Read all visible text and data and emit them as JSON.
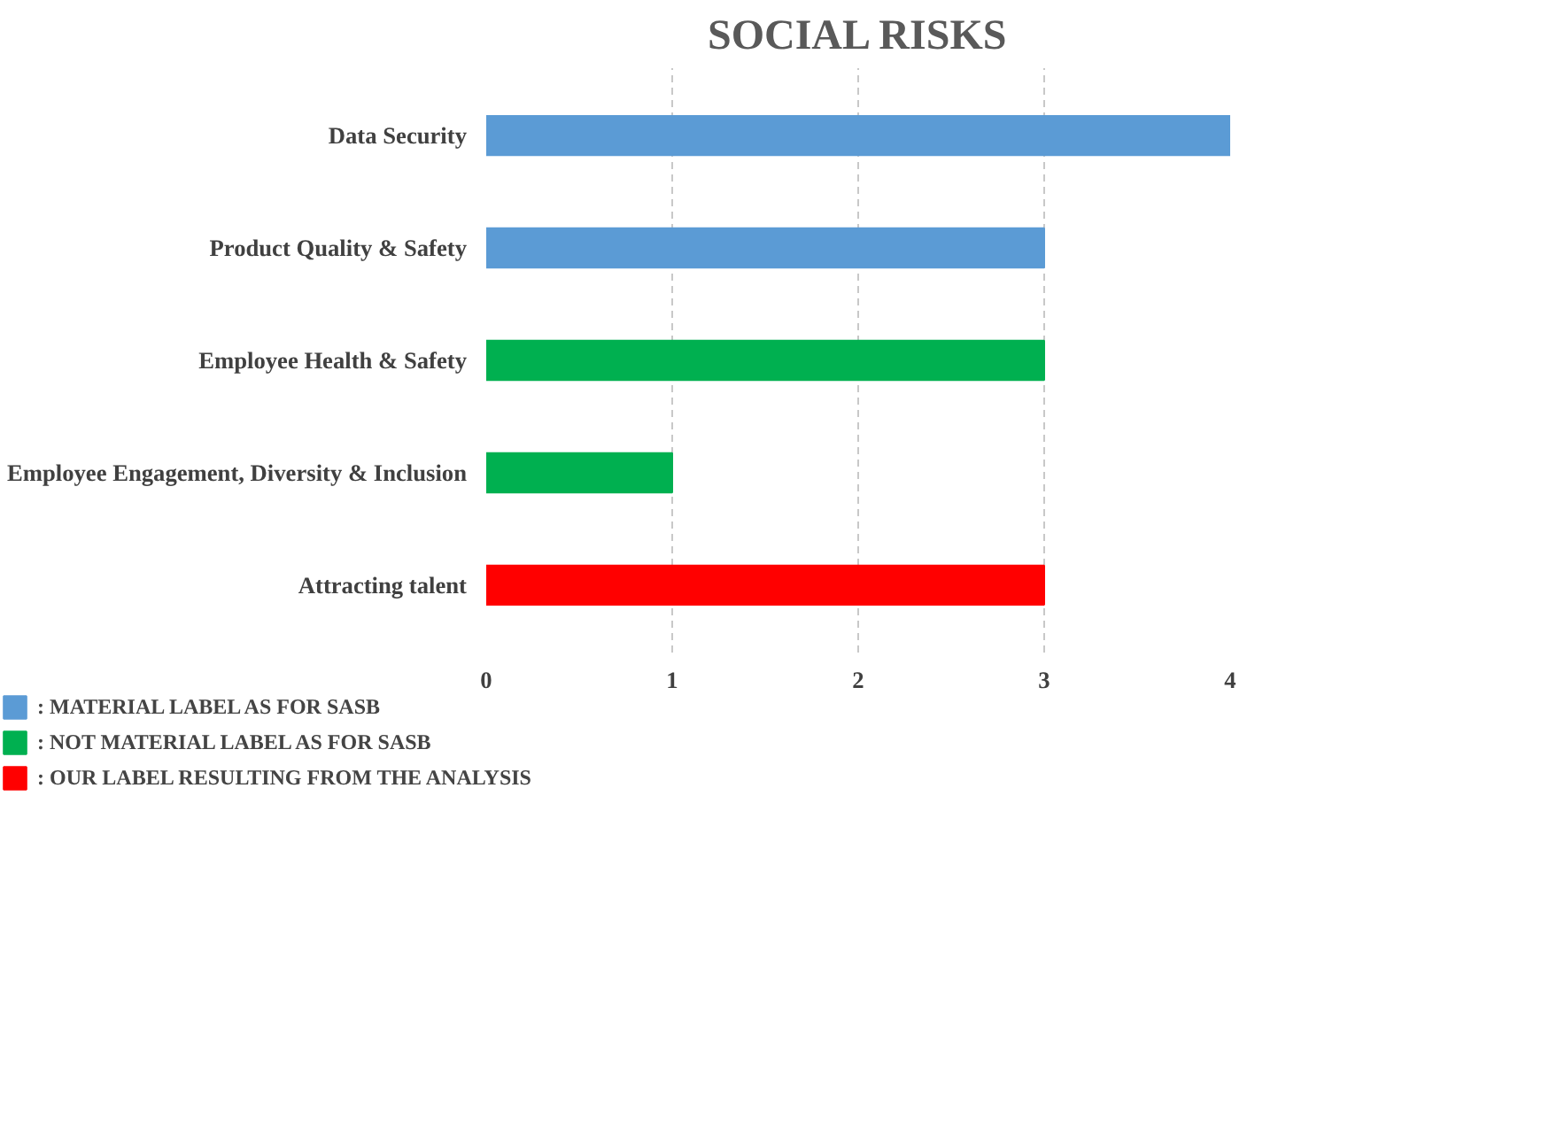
{
  "chart_data": {
    "type": "bar",
    "orientation": "horizontal",
    "stacked": true,
    "title": "SOCIAL RISKS",
    "categories": [
      "Data Security",
      "Product Quality & Safety",
      "Employee Health & Safety",
      "Employee Engagement, Diversity & Inclusion",
      "Attracting talent"
    ],
    "series": [
      {
        "name": ": MATERIAL LABEL AS FOR SASB",
        "color": "#5b9bd5",
        "values": [
          4,
          3,
          null,
          null,
          null
        ]
      },
      {
        "name": ": NOT MATERIAL LABEL AS FOR SASB",
        "color": "#00b050",
        "values": [
          null,
          null,
          3,
          1,
          null
        ]
      },
      {
        "name": ": OUR LABEL RESULTING FROM THE ANALYSIS",
        "color": "#ff0000",
        "values": [
          null,
          null,
          null,
          null,
          3
        ]
      }
    ],
    "xlim": [
      0,
      4
    ],
    "xticks": [
      0,
      1,
      2,
      3,
      4
    ],
    "grid": "x",
    "legend": "bottom"
  }
}
